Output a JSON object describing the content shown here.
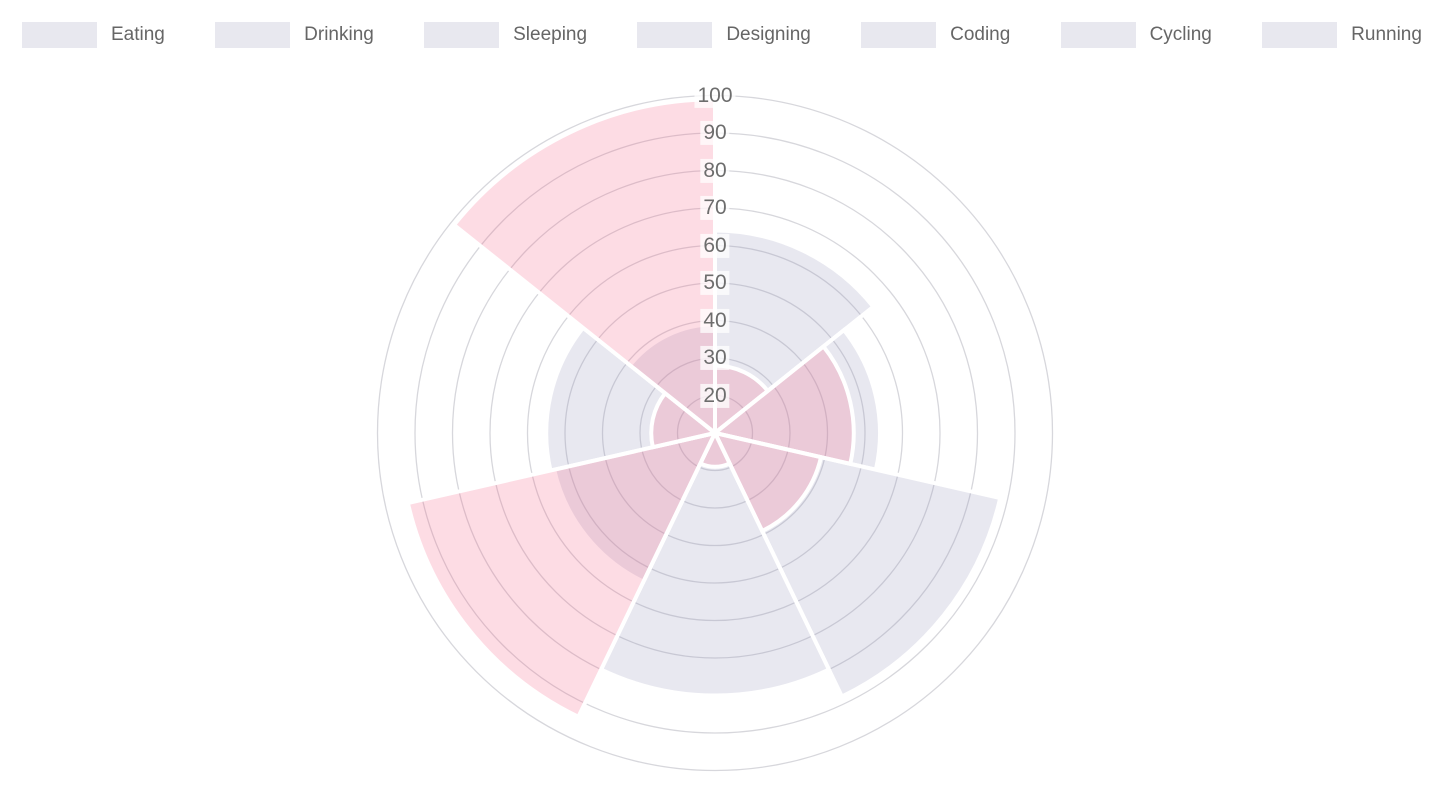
{
  "page": {
    "background": "#ffffff"
  },
  "legend": {
    "position": "top",
    "swatch_color": "#e8e8ef",
    "text_color": "#666666",
    "items": [
      {
        "label": "Eating"
      },
      {
        "label": "Drinking"
      },
      {
        "label": "Sleeping"
      },
      {
        "label": "Designing"
      },
      {
        "label": "Coding"
      },
      {
        "label": "Cycling"
      },
      {
        "label": "Running"
      }
    ]
  },
  "chart_data": {
    "type": "pie",
    "subtype": "polar-area",
    "title": "",
    "categories": [
      "Eating",
      "Drinking",
      "Sleeping",
      "Designing",
      "Coding",
      "Cycling",
      "Running"
    ],
    "series": [
      {
        "name": "dataset-1-grey",
        "color": "rgba(150,150,185,0.22)",
        "border_color": "#ffffff",
        "values": [
          64,
          54,
          88,
          80,
          54,
          55,
          39
        ]
      },
      {
        "name": "dataset-2-pink",
        "color": "rgba(245,96,133,0.22)",
        "border_color": "#ffffff",
        "values": [
          28,
          47,
          39,
          19,
          94,
          27,
          99
        ]
      }
    ],
    "scale": {
      "min": 10,
      "max": 100,
      "step": 10,
      "tick_labels": [
        "20",
        "30",
        "40",
        "50",
        "60",
        "70",
        "80",
        "90",
        "100"
      ],
      "tick_color": "#6d6d6d",
      "tick_backdrop": "rgba(255,255,255,0.75)",
      "grid_color": "#d7d7dc"
    },
    "start_angle_deg": -90,
    "direction": "clockwise",
    "grid": true,
    "angle_lines": false,
    "legend_position": "top",
    "sector_border_width": 4
  }
}
